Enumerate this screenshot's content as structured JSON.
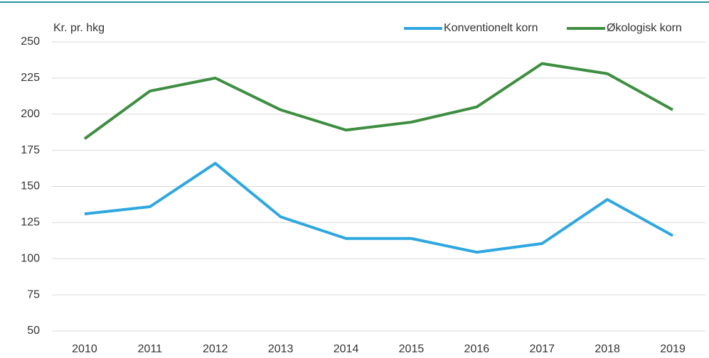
{
  "chart_data": {
    "type": "line",
    "y_label": "Kr. pr. hkg",
    "categories": [
      "2010",
      "2011",
      "2012",
      "2013",
      "2014",
      "2015",
      "2016",
      "2017",
      "2018",
      "2019"
    ],
    "series": [
      {
        "name": "Konventionelt korn",
        "color": "#2ea7e0",
        "values": [
          131,
          136,
          166,
          129,
          114,
          114,
          104.5,
          110.5,
          141,
          116
        ]
      },
      {
        "name": "Økologisk korn",
        "color": "#3e8e41",
        "values": [
          183,
          216,
          225,
          203,
          189,
          194.5,
          205,
          235,
          228,
          203
        ]
      }
    ],
    "ylim": [
      50,
      250
    ],
    "yticks": [
      50,
      75,
      100,
      125,
      150,
      175,
      200,
      225,
      250
    ],
    "grid": true,
    "legend": "top-right"
  }
}
